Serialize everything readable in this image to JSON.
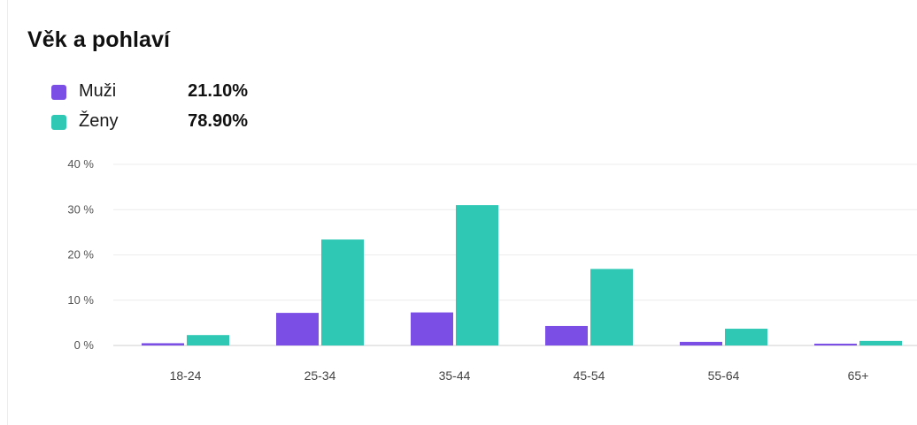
{
  "title": "Věk a pohlaví",
  "colors": {
    "muzi": "#7b4ee6",
    "zeny": "#2ec8b5",
    "grid": "#ececec",
    "axis": "#cfcfcf"
  },
  "legend": [
    {
      "label": "Muži",
      "value": "21.10%"
    },
    {
      "label": "Ženy",
      "value": "78.90%"
    }
  ],
  "chart_data": {
    "type": "bar",
    "title": "Věk a pohlaví",
    "categories": [
      "18-24",
      "25-34",
      "35-44",
      "45-54",
      "55-64",
      "65+"
    ],
    "series": [
      {
        "name": "Muži",
        "values": [
          0.5,
          7.2,
          7.3,
          4.3,
          0.8,
          0.4
        ]
      },
      {
        "name": "Ženy",
        "values": [
          2.3,
          23.4,
          31.0,
          16.9,
          3.7,
          1.0
        ]
      }
    ],
    "ylim": [
      0,
      40
    ],
    "yticks": [
      "0 %",
      "10 %",
      "20 %",
      "30 %",
      "40 %"
    ],
    "grid": true,
    "legend_position": "top-left"
  }
}
